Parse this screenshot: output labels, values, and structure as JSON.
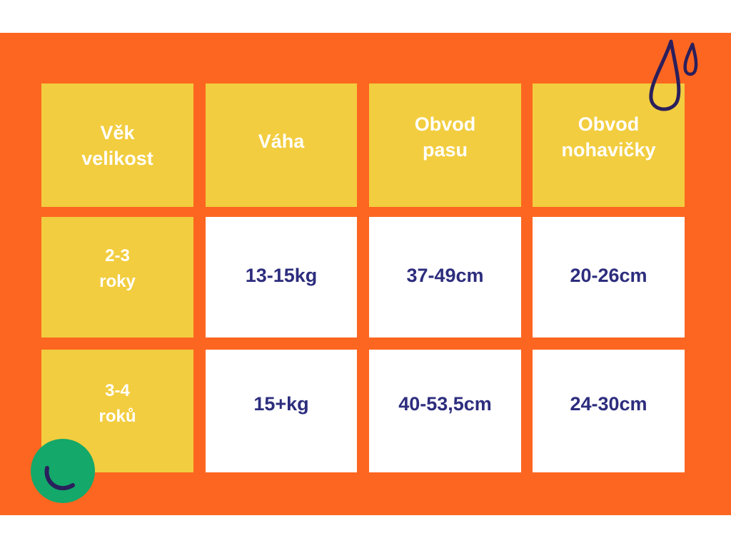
{
  "table": {
    "headers": [
      "Věk\nvelikost",
      "Váha",
      "Obvod\npasu",
      "Obvod\nnohavičky"
    ],
    "rows": [
      [
        "2-3\nroky",
        "13-15kg",
        "37-49cm",
        "20-26cm"
      ],
      [
        "3-4\nroků",
        "15+kg",
        "40-53,5cm",
        "24-30cm"
      ]
    ]
  },
  "colors": {
    "background": "#fd6620",
    "header_cell": "#f2cd3f",
    "value_cell": "#ffffff",
    "value_text": "#2d2d7e",
    "accent_circle": "#14a86a"
  },
  "decorations": [
    "water-drops-icon",
    "smile-circle-icon"
  ]
}
